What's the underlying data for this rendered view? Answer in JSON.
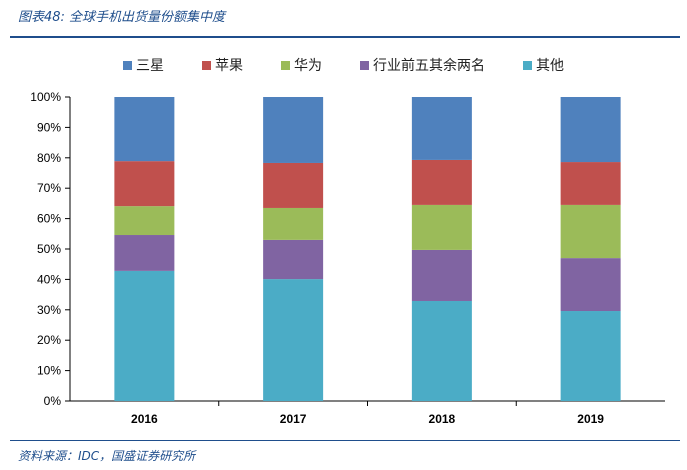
{
  "title": "图表48: 全球手机出货量份额集中度",
  "source": "资料来源：IDC，国盛证券研究所",
  "chart_data": {
    "type": "bar",
    "stacked": true,
    "categories": [
      "2016",
      "2017",
      "2018",
      "2019"
    ],
    "ylim": [
      0,
      100
    ],
    "yticks": [
      "0%",
      "10%",
      "20%",
      "30%",
      "40%",
      "50%",
      "60%",
      "70%",
      "80%",
      "90%",
      "100%"
    ],
    "legend_position": "top",
    "series": [
      {
        "name": "其他",
        "color": "#4bacc6",
        "values": [
          42.8,
          40.1,
          32.9,
          29.6
        ]
      },
      {
        "name": "行业前五其余两名",
        "color": "#8064a2",
        "values": [
          11.8,
          12.9,
          16.8,
          17.4
        ]
      },
      {
        "name": "华为",
        "color": "#9bbb59",
        "values": [
          9.5,
          10.5,
          14.8,
          17.5
        ]
      },
      {
        "name": "苹果",
        "color": "#c0504d",
        "values": [
          14.8,
          14.8,
          14.8,
          14.1
        ]
      },
      {
        "name": "三星",
        "color": "#4f81bd",
        "values": [
          21.1,
          21.7,
          20.7,
          21.4
        ]
      }
    ],
    "legend_order": [
      "三星",
      "苹果",
      "华为",
      "行业前五其余两名",
      "其他"
    ]
  }
}
